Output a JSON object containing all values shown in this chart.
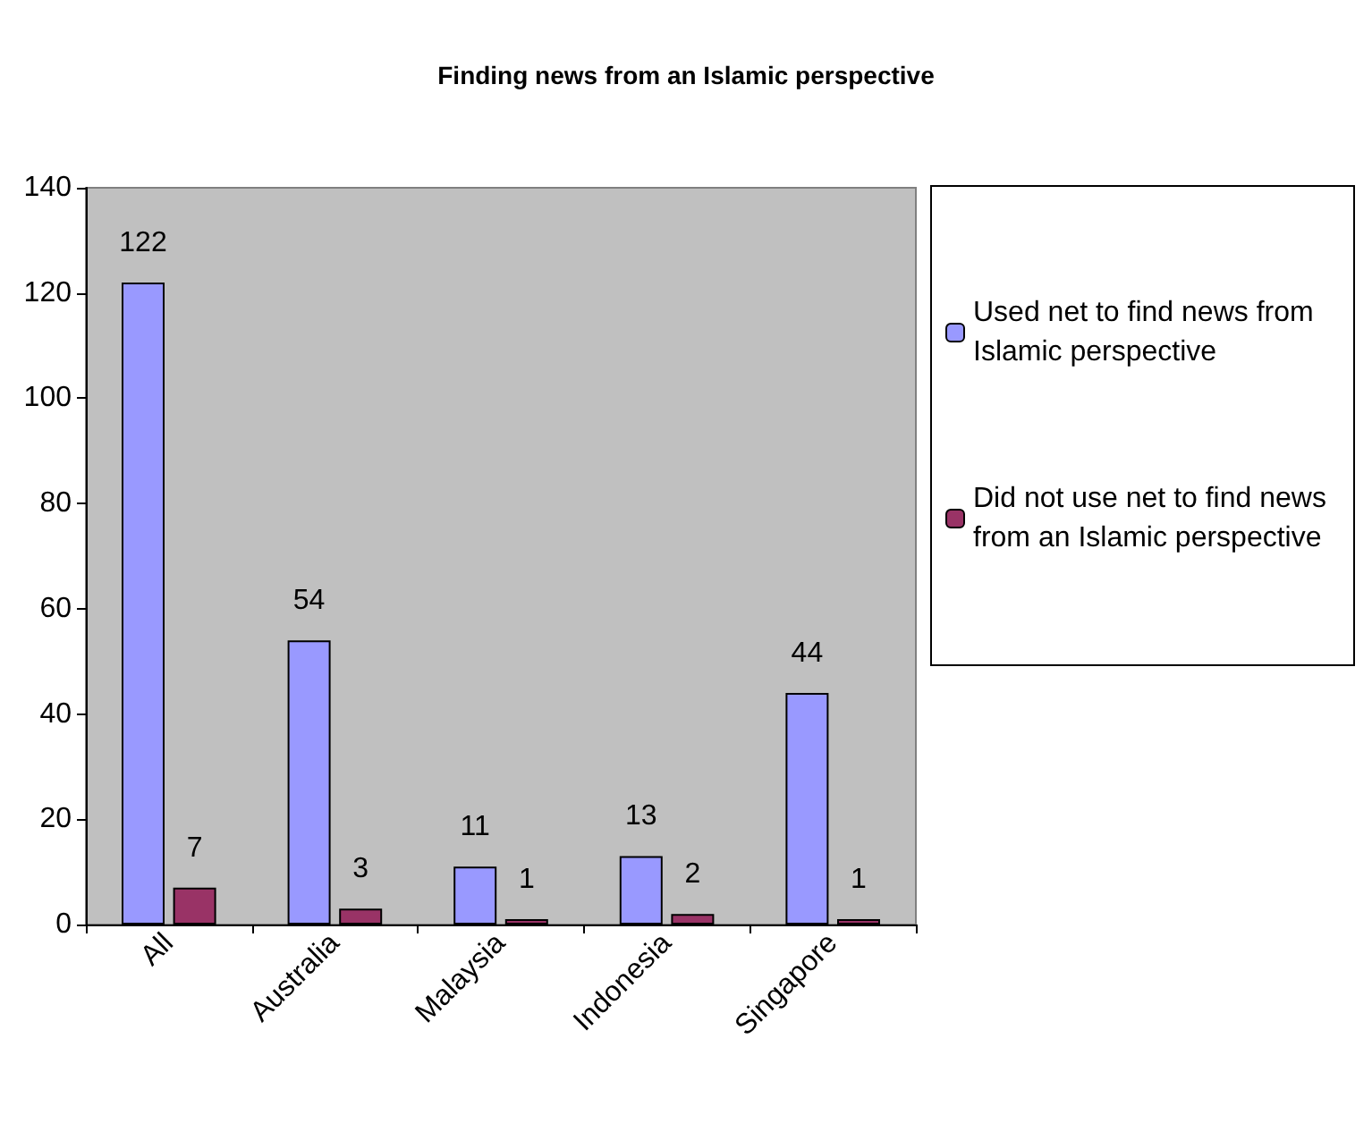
{
  "chart_data": {
    "type": "bar",
    "title": "Finding news from an Islamic perspective",
    "categories": [
      "All",
      "Australia",
      "Malaysia",
      "Indonesia",
      "Singapore"
    ],
    "series": [
      {
        "name": "Used net to find news from Islamic perspective",
        "color": "#9999ff",
        "values": [
          122,
          54,
          11,
          13,
          44
        ]
      },
      {
        "name": "Did not use net to find news from an Islamic perspective",
        "color": "#993366",
        "values": [
          7,
          3,
          1,
          2,
          1
        ]
      }
    ],
    "ylim": [
      0,
      140
    ],
    "yticks": [
      0,
      20,
      40,
      60,
      80,
      100,
      120,
      140
    ],
    "data_labels": true,
    "grid": false,
    "legend": "right"
  }
}
